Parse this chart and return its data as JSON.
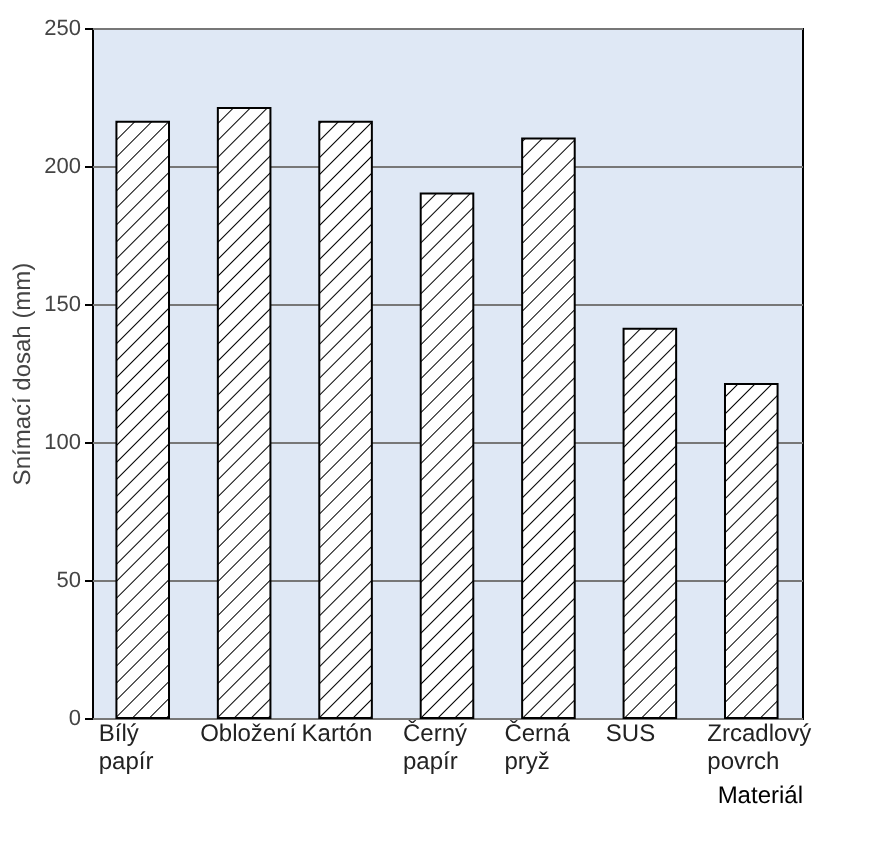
{
  "chart_data": {
    "type": "bar",
    "xlabel": "Materiál",
    "ylabel": "Snímací dosah (mm)",
    "categories": [
      "Bílý papír",
      "Obložení",
      "Kartón",
      "Černý papír",
      "Černá pryž",
      "SUS",
      "Zrcadlový povrch"
    ],
    "values": [
      216,
      221,
      216,
      190,
      210,
      141,
      121
    ],
    "color": "#000000",
    "ylim": [
      0,
      250
    ],
    "yticks": [
      0,
      50,
      100,
      150,
      200,
      250
    ],
    "grid": "y"
  }
}
